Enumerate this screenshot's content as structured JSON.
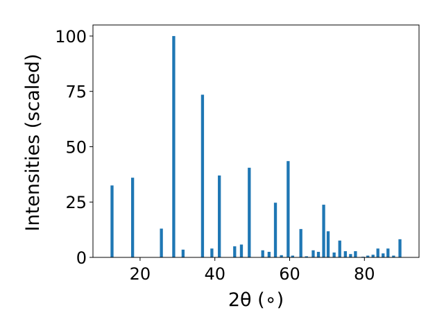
{
  "chart_data": {
    "type": "bar",
    "title": "",
    "xlabel": "2θ (∘)",
    "ylabel": "Intensities (scaled)",
    "xlim": [
      7.4,
      94.6
    ],
    "ylim": [
      0,
      105
    ],
    "xticks": [
      20,
      40,
      60,
      80
    ],
    "yticks": [
      0,
      25,
      50,
      75,
      100
    ],
    "grid": false,
    "bar_color": "#1f77b4",
    "bar_width": 0.8,
    "series": [
      {
        "x": [
          12.5,
          18.0,
          25.7,
          29.0,
          31.5,
          36.7,
          39.2,
          41.2,
          45.3,
          47.1,
          49.2,
          52.8,
          54.5,
          56.2,
          57.8,
          59.6,
          60.8,
          63.0,
          64.5,
          66.3,
          67.7,
          69.1,
          70.3,
          71.9,
          73.4,
          74.9,
          76.3,
          77.6,
          79.6,
          80.9,
          82.3,
          83.6,
          85.0,
          86.3,
          87.8,
          89.5
        ],
        "values": [
          32.5,
          36.0,
          13.0,
          100.0,
          3.5,
          73.5,
          4.0,
          37.0,
          5.0,
          5.8,
          40.5,
          3.2,
          2.5,
          24.7,
          1.0,
          43.5,
          0.8,
          12.8,
          0.5,
          3.2,
          2.5,
          23.8,
          11.8,
          2.2,
          7.6,
          2.8,
          1.5,
          2.8,
          0.3,
          0.8,
          1.2,
          4.0,
          1.8,
          4.0,
          0.8,
          8.2
        ]
      }
    ]
  }
}
